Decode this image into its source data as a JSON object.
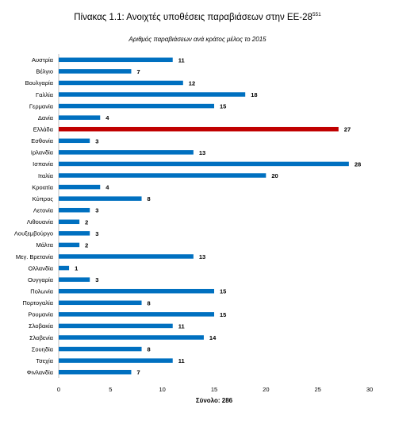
{
  "title": "Πίνακας 1.1: Ανοιχτές υποθέσεις παραβιάσεων στην ΕΕ-28",
  "title_footnote": "551",
  "chart_data": {
    "type": "bar",
    "orientation": "horizontal",
    "title": "Αριθμός παραβιάσεων ανά κράτος μέλος το 2015",
    "xlabel": "Σύνολο: 286",
    "ylabel": "",
    "xlim": [
      0,
      30
    ],
    "xticks": [
      0,
      5,
      10,
      15,
      20,
      25,
      30
    ],
    "grid": false,
    "legend": "none",
    "colors": {
      "default": "#0070c0",
      "highlight": "#c00000"
    },
    "highlight": "Ελλάδα",
    "categories": [
      "Αυστρία",
      "Βέλγιο",
      "Βουλγαρία",
      "Γαλλία",
      "Γερμανία",
      "Δανία",
      "Ελλάδα",
      "Εσθονία",
      "Ιρλανδία",
      "Ισπανία",
      "Ιταλία",
      "Κροατία",
      "Κύπρος",
      "Λετονία",
      "Λιθουανία",
      "Λουξεμβούργο",
      "Μάλτα",
      "Μεγ. Βρετανία",
      "Ολλανδία",
      "Ουγγαρία",
      "Πολωνία",
      "Πορτογαλία",
      "Ρουμανία",
      "Σλοβακία",
      "Σλοβενία",
      "Σουηδία",
      "Τσεχία",
      "Φινλανδία"
    ],
    "values": [
      11,
      7,
      12,
      18,
      15,
      4,
      27,
      3,
      13,
      28,
      20,
      4,
      8,
      3,
      2,
      3,
      2,
      13,
      1,
      3,
      15,
      8,
      15,
      11,
      14,
      8,
      11,
      7
    ]
  }
}
